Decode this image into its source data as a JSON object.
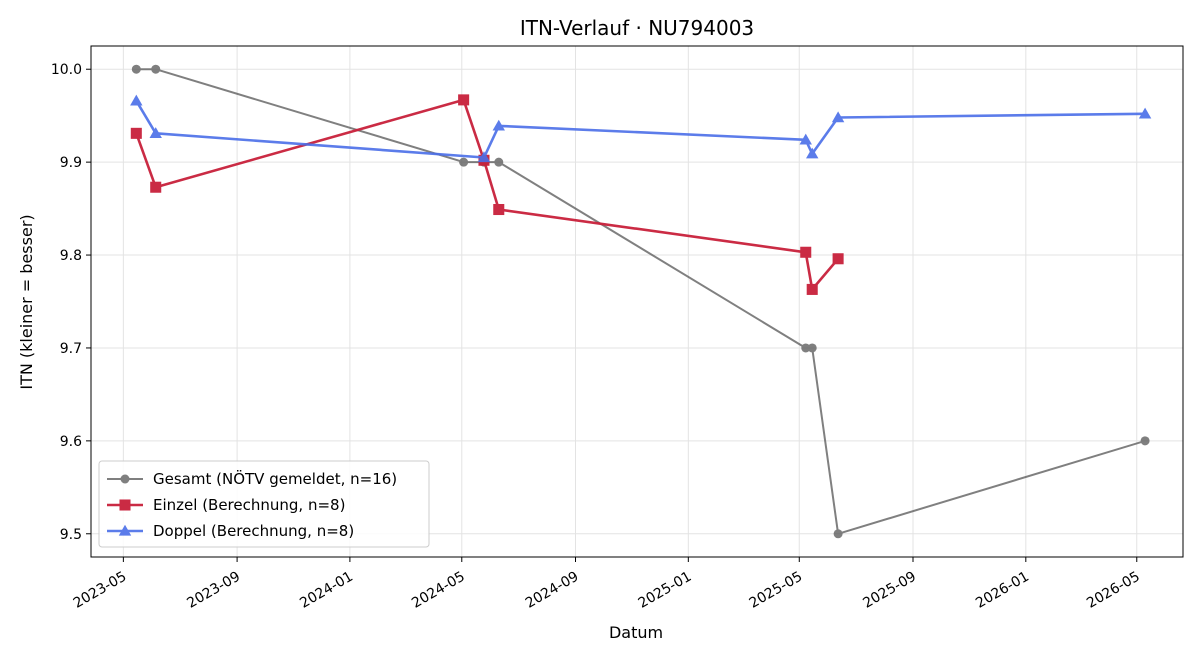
{
  "chart_data": {
    "type": "line",
    "title": "ITN-Verlauf · NU794003",
    "xlabel": "Datum",
    "ylabel": "ITN  (kleiner = besser)",
    "xlim": [
      "2023-03-27",
      "2026-06-20"
    ],
    "ylim": [
      9.475,
      10.025
    ],
    "x_ticks": [
      "2023-05",
      "2023-09",
      "2024-01",
      "2024-05",
      "2024-09",
      "2025-01",
      "2025-05",
      "2025-09",
      "2026-01",
      "2026-05"
    ],
    "y_ticks": [
      "10.0",
      "9.9",
      "9.8",
      "9.7",
      "9.6",
      "9.5"
    ],
    "grid": true,
    "legend_position": "lower-left",
    "series": [
      {
        "name": "Gesamt (NÖTV gemeldet, n=16)",
        "color": "#555555",
        "marker": "circle",
        "points": [
          {
            "x": "2023-05-15",
            "y": 10.0
          },
          {
            "x": "2023-06-05",
            "y": 10.0
          },
          {
            "x": "2024-05-03",
            "y": 9.9
          },
          {
            "x": "2024-05-25",
            "y": 9.9
          },
          {
            "x": "2024-06-10",
            "y": 9.9
          },
          {
            "x": "2025-05-08",
            "y": 9.7
          },
          {
            "x": "2025-05-15",
            "y": 9.7
          },
          {
            "x": "2025-06-12",
            "y": 9.5
          },
          {
            "x": "2026-05-10",
            "y": 9.6
          }
        ]
      },
      {
        "name": "Einzel (Berechnung, n=8)",
        "color": "#c8203a",
        "marker": "square",
        "points": [
          {
            "x": "2023-05-15",
            "y": 9.931
          },
          {
            "x": "2023-06-05",
            "y": 9.873
          },
          {
            "x": "2024-05-03",
            "y": 9.967
          },
          {
            "x": "2024-05-25",
            "y": 9.902
          },
          {
            "x": "2024-06-10",
            "y": 9.849
          },
          {
            "x": "2025-05-08",
            "y": 9.803
          },
          {
            "x": "2025-05-15",
            "y": 9.763
          },
          {
            "x": "2025-06-12",
            "y": 9.796
          }
        ]
      },
      {
        "name": "Doppel (Berechnung, n=8)",
        "color": "#4a6ee8",
        "marker": "triangle",
        "points": [
          {
            "x": "2023-05-15",
            "y": 9.966
          },
          {
            "x": "2023-06-05",
            "y": 9.931
          },
          {
            "x": "2024-05-25",
            "y": 9.905
          },
          {
            "x": "2024-06-10",
            "y": 9.939
          },
          {
            "x": "2025-05-08",
            "y": 9.924
          },
          {
            "x": "2025-05-15",
            "y": 9.909
          },
          {
            "x": "2025-06-12",
            "y": 9.948
          },
          {
            "x": "2026-05-10",
            "y": 9.952
          }
        ]
      }
    ]
  }
}
